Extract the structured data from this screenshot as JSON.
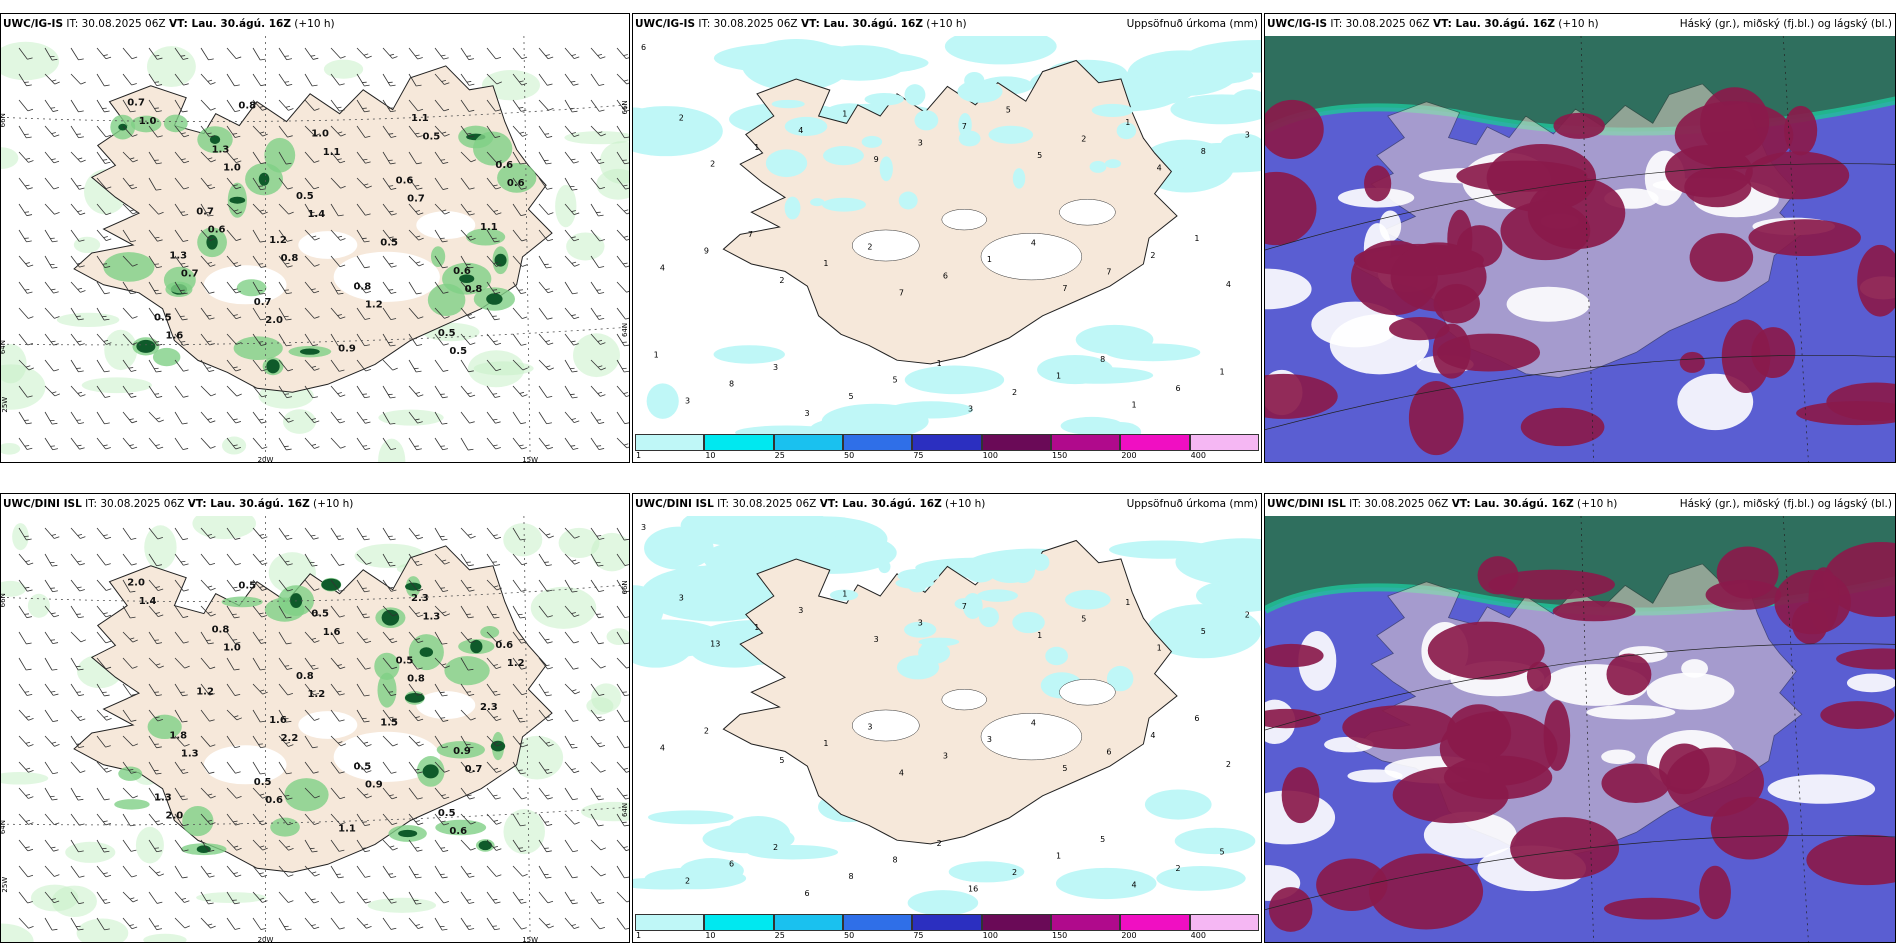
{
  "panels": [
    {
      "id": "r1c1",
      "model": "UWC/IG-IS",
      "it": " IT: 30.08.2025 06Z ",
      "vt_label": "VT: Lau. 30.ágú. 16Z",
      "lead": " (+10 h)",
      "right_title": "",
      "kind": "precip-wind",
      "lat_labels": [
        "66N",
        "64N"
      ],
      "lon_labels": [
        "20W",
        "15W"
      ],
      "edge_left": "25W",
      "value_labels": [
        "0.7",
        "1.2",
        "1.1",
        "1.3",
        "1.0",
        "0.6",
        "1.3",
        "0.8",
        "0.6",
        "0.7",
        "0.6",
        "0.5",
        "0.5",
        "0.5",
        "0.7",
        "0.9",
        "1.1",
        "0.8",
        "0.5",
        "1.0",
        "0.8",
        "0.5",
        "0.7",
        "1.1",
        "0.8",
        "1.0",
        "1.2",
        "0.6",
        "2.0",
        "0.7",
        "1.6",
        "1.4",
        "0.5",
        "0.6"
      ]
    },
    {
      "id": "r1c2",
      "model": "UWC/IG-IS",
      "it": " IT: 30.08.2025 06Z ",
      "vt_label": "VT: Lau. 30.ágú. 16Z",
      "lead": " (+10 h)",
      "right_title": "Uppsöfnuð úrkoma (mm)",
      "kind": "accum",
      "value_labels": [
        "6",
        "7",
        "4",
        "3",
        "7",
        "2",
        "3",
        "4",
        "9",
        "1",
        "2",
        "5",
        "3",
        "6",
        "8",
        "5",
        "7",
        "1",
        "2",
        "4",
        "3",
        "6",
        "1",
        "2",
        "8",
        "1",
        "3",
        "5",
        "2",
        "4",
        "1",
        "9",
        "7",
        "1",
        "2",
        "1",
        "3",
        "4",
        "2",
        "1",
        "1",
        "1",
        "8",
        "7",
        "5",
        "1"
      ]
    },
    {
      "id": "r1c3",
      "model": "UWC/IG-IS",
      "it": " IT: 30.08.2025 06Z ",
      "vt_label": "VT: Lau. 30.ágú. 16Z",
      "lead": " (+10 h)",
      "right_title": "Háský (gr.), miðský (fj.bl.) og lágský (bl.)",
      "kind": "cloud"
    },
    {
      "id": "r2c1",
      "model": "UWC/DINI ISL",
      "it": " IT: 30.08.2025 06Z ",
      "vt_label": "VT: Lau. 30.ágú. 16Z",
      "lead": " (+10 h)",
      "right_title": "",
      "kind": "precip-wind",
      "lat_labels": [
        "66N",
        "64N"
      ],
      "lon_labels": [
        "20W",
        "15W"
      ],
      "edge_left": "25W",
      "value_labels": [
        "2.0",
        "1.6",
        "2.3",
        "1.8",
        "0.5",
        "0.9",
        "0.8",
        "0.5",
        "0.6",
        "0.5",
        "0.5",
        "1.3",
        "0.8",
        "0.5",
        "1.2",
        "1.1",
        "2.3",
        "0.5",
        "1.5",
        "1.4",
        "2.2",
        "1.3",
        "1.3",
        "1.6",
        "0.7",
        "1.0",
        "0.9",
        "1.2",
        "0.6",
        "0.8",
        "2.0",
        "1.2",
        "0.6"
      ]
    },
    {
      "id": "r2c2",
      "model": "UWC/DINI ISL",
      "it": " IT: 30.08.2025 06Z ",
      "vt_label": "VT: Lau. 30.ágú. 16Z",
      "lead": " (+10 h)",
      "right_title": "Uppsöfnuð úrkoma (mm)",
      "kind": "accum",
      "value_labels": [
        "3",
        "4",
        "1",
        "6",
        "5",
        "13",
        "16",
        "2",
        "3",
        "4",
        "5",
        "1",
        "2",
        "3",
        "5",
        "8",
        "6",
        "1",
        "2",
        "4",
        "3",
        "2",
        "1",
        "5",
        "6",
        "3",
        "2",
        "8",
        "4",
        "3",
        "1",
        "2",
        "7",
        "5",
        "3",
        "1",
        "2",
        "4",
        "3",
        "2",
        "6",
        "1",
        "5"
      ]
    },
    {
      "id": "r2c3",
      "model": "UWC/DINI ISL",
      "it": " IT: 30.08.2025 06Z ",
      "vt_label": "VT: Lau. 30.ágú. 16Z",
      "lead": " (+10 h)",
      "right_title": "Háský (gr.), miðský (fj.bl.) og lágský (bl.)",
      "kind": "cloud"
    }
  ],
  "colorbar": {
    "ticks": [
      "1",
      "10",
      "25",
      "50",
      "75",
      "100",
      "150",
      "200",
      "400"
    ],
    "colors": [
      "#bff7f7",
      "#00e8f0",
      "#1ac1ef",
      "#2f6fe8",
      "#2b2fc0",
      "#6a0a57",
      "#b00a8c",
      "#f00fc2",
      "#f5b7f3"
    ]
  },
  "colors": {
    "land": "#f6e8da",
    "sea": "#ffffff",
    "precip_light": "#c8f0c8",
    "precip_mid": "#7fcf86",
    "precip_dark": "#0f5a2a",
    "accum_fill": "#bff7f7",
    "cloud_blue": "#5a5ed2",
    "cloud_red": "#8a1a4b",
    "cloud_green": "#1fc69a",
    "cloud_dgreen": "#2f6f5e"
  }
}
